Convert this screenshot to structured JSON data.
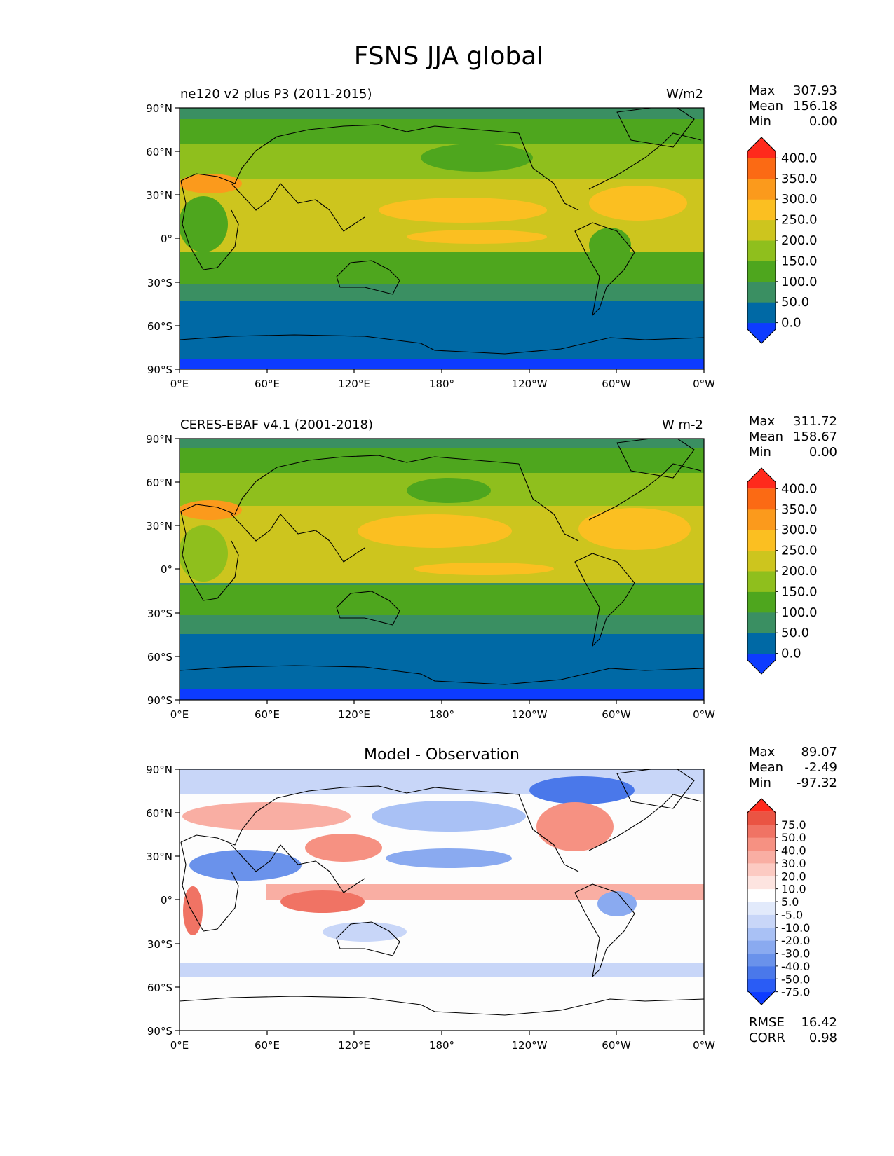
{
  "title": "FSNS JJA global",
  "lat_labels": [
    "90°N",
    "60°N",
    "30°N",
    "0°",
    "30°S",
    "60°S",
    "90°S"
  ],
  "lon_labels": [
    "0°E",
    "60°E",
    "120°E",
    "180°",
    "120°W",
    "60°W",
    "0°W"
  ],
  "panels": [
    {
      "left_title": "ne120 v2 plus P3 (2011-2015)",
      "center_title": "",
      "units": "W/m2",
      "stats": [
        {
          "label": "Max",
          "value": "307.93"
        },
        {
          "label": "Mean",
          "value": "156.18"
        },
        {
          "label": "Min",
          "value": "0.00"
        }
      ],
      "colorbar": {
        "colors": [
          "#0d3bff",
          "#0069a5",
          "#3a8f62",
          "#4ea61e",
          "#8fbf1d",
          "#cdc51e",
          "#fbbf21",
          "#fb9a1c",
          "#fb6a14",
          "#ff2a1c"
        ],
        "labels": [
          "0.0",
          "50.0",
          "100.0",
          "150.0",
          "200.0",
          "250.0",
          "300.0",
          "350.0",
          "400.0"
        ]
      }
    },
    {
      "left_title": "CERES-EBAF v4.1 (2001-2018)",
      "center_title": "",
      "units": "W m-2",
      "stats": [
        {
          "label": "Max",
          "value": "311.72"
        },
        {
          "label": "Mean",
          "value": "158.67"
        },
        {
          "label": "Min",
          "value": "0.00"
        }
      ],
      "colorbar": {
        "colors": [
          "#0d3bff",
          "#0069a5",
          "#3a8f62",
          "#4ea61e",
          "#8fbf1d",
          "#cdc51e",
          "#fbbf21",
          "#fb9a1c",
          "#fb6a14",
          "#ff2a1c"
        ],
        "labels": [
          "0.0",
          "50.0",
          "100.0",
          "150.0",
          "200.0",
          "250.0",
          "300.0",
          "350.0",
          "400.0"
        ]
      }
    },
    {
      "left_title": "",
      "center_title": "Model - Observation",
      "units": "",
      "stats": [
        {
          "label": "Max",
          "value": "89.07"
        },
        {
          "label": "Mean",
          "value": "-2.49"
        },
        {
          "label": "Min",
          "value": "-97.32"
        }
      ],
      "colorbar": {
        "colors": [
          "#0d3bff",
          "#2a5cf5",
          "#4a78ea",
          "#6a92eb",
          "#8aaaf0",
          "#a9c1f5",
          "#c8d6f8",
          "#e2eafb",
          "#ffffff",
          "#fde4e0",
          "#fccac2",
          "#f9aea3",
          "#f69182",
          "#f07364",
          "#ea5443",
          "#ff2a1c"
        ],
        "labels": [
          "-75.0",
          "-50.0",
          "-40.0",
          "-30.0",
          "-20.0",
          "-10.0",
          "-5.0",
          "5.0",
          "10.0",
          "20.0",
          "30.0",
          "40.0",
          "50.0",
          "75.0"
        ]
      },
      "footer_stats": [
        {
          "label": "RMSE",
          "value": "16.42"
        },
        {
          "label": "CORR",
          "value": "0.98"
        }
      ]
    }
  ]
}
